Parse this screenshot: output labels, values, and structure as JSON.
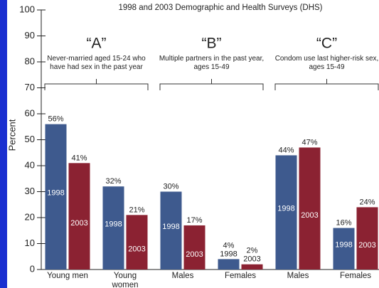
{
  "chart_data": {
    "type": "bar",
    "title": "1998 and 2003 Demographic and Health Surveys (DHS)",
    "y_label": "Percent",
    "categories": [
      "Young men",
      "Young women",
      "Males",
      "Females",
      "Males",
      "Females"
    ],
    "groups": [
      {
        "label": "“A”",
        "description": "Never-married aged 15-24 who have had sex in the past year"
      },
      {
        "label": "“B”",
        "description": "Multiple partners in the past year, ages 15-49"
      },
      {
        "label": "“C”",
        "description": "Condom use last higher-risk sex, ages 15-49"
      }
    ],
    "series": [
      {
        "name": "1998",
        "color": "#3e5a8e",
        "values": [
          56,
          32,
          30,
          4,
          44,
          16
        ],
        "value_labels": [
          "56%",
          "32%",
          "30%",
          "4%",
          "44%",
          "16%"
        ]
      },
      {
        "name": "2003",
        "color": "#8b2232",
        "values": [
          41,
          21,
          17,
          2,
          47,
          24
        ],
        "value_labels": [
          "41%",
          "21%",
          "17%",
          "2%",
          "47%",
          "24%"
        ]
      }
    ],
    "ylim": [
      0,
      100
    ],
    "yticks": [
      0,
      10,
      20,
      30,
      40,
      50,
      60,
      70,
      80,
      90,
      100
    ]
  }
}
